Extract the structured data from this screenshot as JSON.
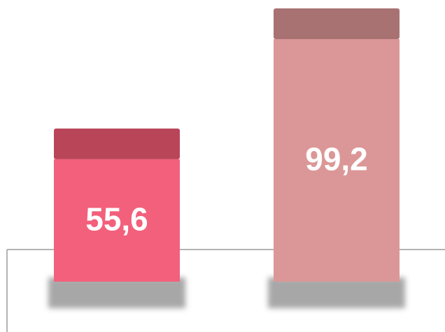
{
  "chart_data": {
    "type": "bar",
    "values": [
      55.6,
      99.2
    ],
    "value_labels": [
      "55,6",
      "99,2"
    ],
    "colors": [
      "#f2607b",
      "#db9797"
    ],
    "top_colors": [
      "#b94559",
      "#a87272"
    ]
  }
}
